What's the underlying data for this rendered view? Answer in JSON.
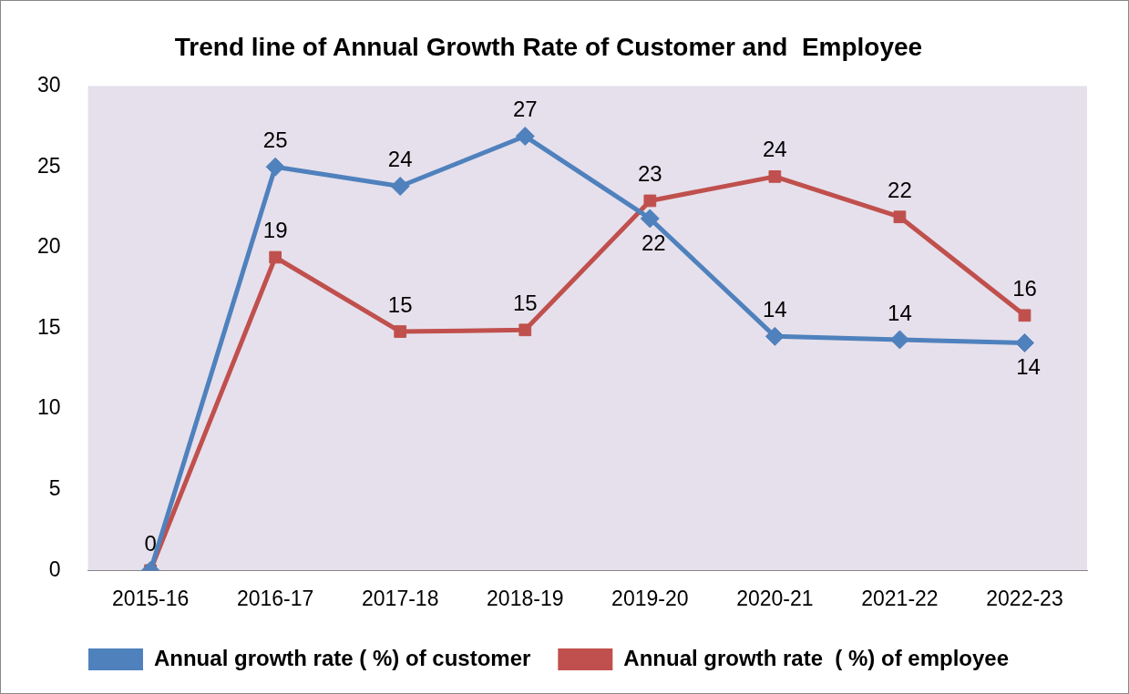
{
  "chart_data": {
    "type": "line",
    "title": "Trend line of Annual Growth Rate of Customer and  Employee",
    "categories": [
      "2015-16",
      "2016-17",
      "2017-18",
      "2018-19",
      "2019-20",
      "2020-21",
      "2021-22",
      "2022-23"
    ],
    "series": [
      {
        "name": "Annual growth rate ( %) of customer",
        "color": "#4f81bd",
        "marker": "diamond",
        "values": [
          0,
          25,
          23.8,
          26.9,
          21.8,
          14.5,
          14.3,
          14.1
        ],
        "value_labels": [
          "0",
          "25",
          "24",
          "27",
          "22",
          "14",
          "14",
          "14"
        ]
      },
      {
        "name": "Annual growth rate  ( %) of employee",
        "color": "#c0504d",
        "marker": "square",
        "values": [
          0,
          19.4,
          14.8,
          14.9,
          22.9,
          24.4,
          21.9,
          15.8
        ],
        "value_labels": [
          null,
          "19",
          "15",
          "15",
          "23",
          "24",
          "22",
          "16"
        ]
      }
    ],
    "ylim": [
      0,
      30
    ],
    "yticks": [
      0,
      5,
      10,
      15,
      20,
      25,
      30
    ],
    "grid": false,
    "legend": "bottom"
  }
}
